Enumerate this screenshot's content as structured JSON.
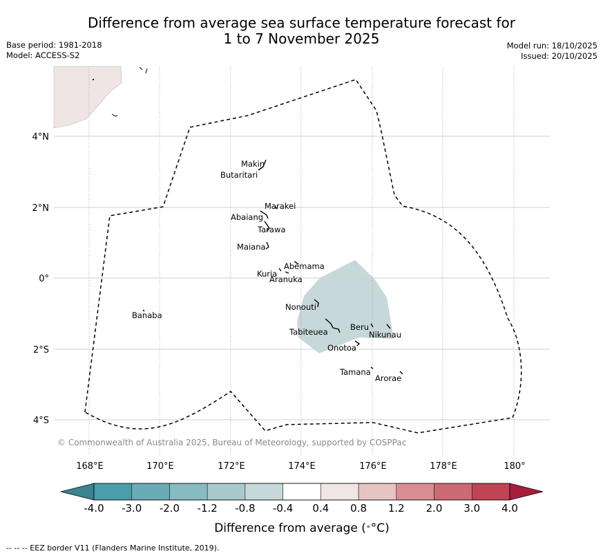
{
  "title_line1": "Difference from average sea surface temperature forecast for",
  "title_line2": "1 to 7 November 2025",
  "meta": {
    "base_period": "Base period: 1981-2018",
    "model": "Model: ACCESS-S2",
    "model_run": "Model run: 18/10/2025",
    "issued": "Issued: 20/10/2025"
  },
  "map": {
    "lat_labels": [
      "4°N",
      "2°N",
      "0°",
      "2°S",
      "4°S"
    ],
    "lon_labels": [
      "168°E",
      "170°E",
      "172°E",
      "174°E",
      "176°E",
      "178°E",
      "180°"
    ],
    "islands": [
      "Makin",
      "Butaritari",
      "Marakei",
      "Abaiang",
      "Tarawa",
      "Maiana",
      "Abemama",
      "Kuria",
      "Aranuka",
      "Banaba",
      "Nonouti",
      "Tabiteuea",
      "Beru",
      "Nikunau",
      "Onotoa",
      "Tamana",
      "Arorae"
    ],
    "copyright": "© Commonwealth of Australia 2025, Bureau of Meteorology, supported by COSPPac",
    "anomaly_region_class": "-0.8 to -0.4"
  },
  "colorbar": {
    "ticks": [
      "-4.0",
      "-3.0",
      "-2.0",
      "-1.2",
      "-0.8",
      "-0.4",
      "0.4",
      "0.8",
      "1.2",
      "2.0",
      "3.0",
      "4.0"
    ],
    "colors": [
      "#4a9eaa",
      "#69abb6",
      "#88bac2",
      "#a8c9cd",
      "#c7d8db",
      "#ffffff",
      "#f0e6e5",
      "#e6c4c1",
      "#d98e94",
      "#cc6a73",
      "#c04452"
    ],
    "low_extend_color": "#3a8490",
    "high_extend_color": "#a81d3c",
    "label": "Difference from average (",
    "unit": "°C)"
  },
  "footer": "--  --  -- EEZ border V11 (Flanders Marine Institute, 2019)."
}
